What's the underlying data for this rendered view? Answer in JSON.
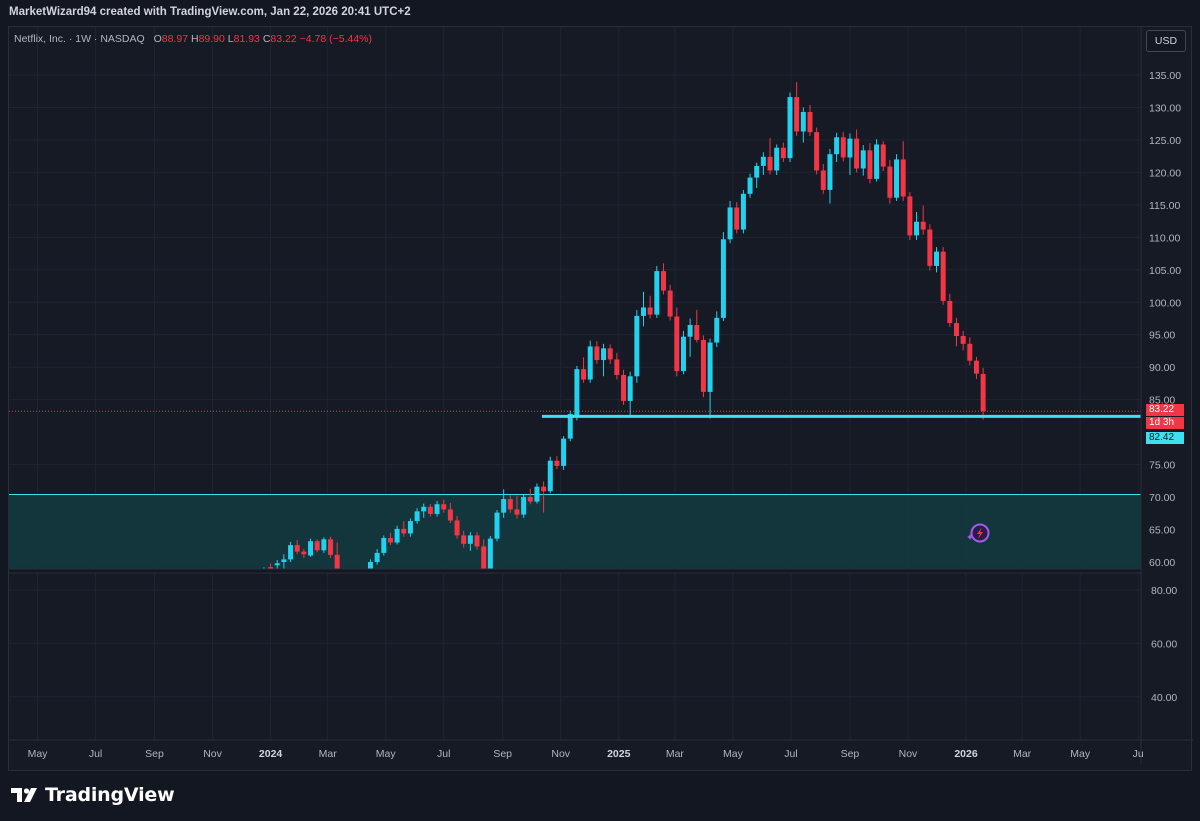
{
  "header": {
    "attribution": "MarketWizard94 created with TradingView.com, Jan 22, 2026 20:41 UTC+2"
  },
  "legend": {
    "symbol": "Netflix, Inc. · 1W · NASDAQ",
    "o_label": "O",
    "o_value": "88.97",
    "h_label": "H",
    "h_value": "89.90",
    "l_label": "L",
    "l_value": "81.93",
    "c_label": "C",
    "c_value": "83.22",
    "change": "−4.78 (−5.44%)"
  },
  "currency_button": "USD",
  "price_tags": {
    "last_price": "83.22",
    "countdown": "1d 3h",
    "line_price": "82.42"
  },
  "brand": {
    "name": "TradingView"
  },
  "colors": {
    "up": "#22d1ee",
    "down": "#f23645",
    "line": "#3ee0f0",
    "zone": "#133a40",
    "background": "#161a25"
  },
  "chart_data": {
    "type": "candlestick",
    "interval": "1W",
    "price_axis": {
      "ylim": [
        58.5,
        137.5
      ],
      "ticks": [
        "135.00",
        "130.00",
        "125.00",
        "120.00",
        "115.00",
        "110.00",
        "105.00",
        "100.00",
        "95.00",
        "90.00",
        "85.00",
        "75.00",
        "70.00",
        "65.00",
        "60.00"
      ]
    },
    "lower_axis": {
      "ticks": [
        "80.00",
        "60.00",
        "40.00"
      ]
    },
    "time_axis": {
      "ticks": [
        {
          "label": "May",
          "date": "2023-05-01",
          "bold": false
        },
        {
          "label": "Jul",
          "date": "2023-07-01",
          "bold": false
        },
        {
          "label": "Sep",
          "date": "2023-09-01",
          "bold": false
        },
        {
          "label": "Nov",
          "date": "2023-11-01",
          "bold": false
        },
        {
          "label": "2024",
          "date": "2024-01-01",
          "bold": true
        },
        {
          "label": "Mar",
          "date": "2024-03-01",
          "bold": false
        },
        {
          "label": "May",
          "date": "2024-05-01",
          "bold": false
        },
        {
          "label": "Jul",
          "date": "2024-07-01",
          "bold": false
        },
        {
          "label": "Sep",
          "date": "2024-09-01",
          "bold": false
        },
        {
          "label": "Nov",
          "date": "2024-11-01",
          "bold": false
        },
        {
          "label": "2025",
          "date": "2025-01-01",
          "bold": true
        },
        {
          "label": "Mar",
          "date": "2025-03-01",
          "bold": false
        },
        {
          "label": "May",
          "date": "2025-05-01",
          "bold": false
        },
        {
          "label": "Jul",
          "date": "2025-07-01",
          "bold": false
        },
        {
          "label": "Sep",
          "date": "2025-09-01",
          "bold": false
        },
        {
          "label": "Nov",
          "date": "2025-11-01",
          "bold": false
        },
        {
          "label": "2026",
          "date": "2026-01-01",
          "bold": true
        },
        {
          "label": "Mar",
          "date": "2026-03-01",
          "bold": false
        },
        {
          "label": "May",
          "date": "2026-05-01",
          "bold": false
        },
        {
          "label": "Ju",
          "date": "2026-07-01",
          "bold": false
        }
      ]
    },
    "support_line": {
      "price": 82.42,
      "from_date": "2024-10-28",
      "to_date": "2026-07-20"
    },
    "support_zone": {
      "top": 70.4,
      "bottom": 58.5,
      "from_date": "2023-04-01"
    },
    "last_price": 83.22,
    "candles": [
      {
        "d": "2023-12-18",
        "o": 58.5,
        "h": 58.9,
        "l": 58.5,
        "c": 58.7
      },
      {
        "d": "2023-12-25",
        "o": 58.5,
        "h": 59.2,
        "l": 58.5,
        "c": 59.0
      },
      {
        "d": "2024-01-01",
        "o": 59.2,
        "h": 59.8,
        "l": 58.5,
        "c": 58.8
      },
      {
        "d": "2024-01-08",
        "o": 59.5,
        "h": 60.3,
        "l": 58.5,
        "c": 59.8
      },
      {
        "d": "2024-01-15",
        "o": 60.0,
        "h": 61.2,
        "l": 58.5,
        "c": 60.4
      },
      {
        "d": "2024-01-22",
        "o": 60.4,
        "h": 63.1,
        "l": 60.0,
        "c": 62.6
      },
      {
        "d": "2024-01-29",
        "o": 62.6,
        "h": 63.4,
        "l": 61.2,
        "c": 61.6
      },
      {
        "d": "2024-02-05",
        "o": 61.6,
        "h": 62.0,
        "l": 60.6,
        "c": 61.2
      },
      {
        "d": "2024-02-12",
        "o": 61.0,
        "h": 63.6,
        "l": 60.8,
        "c": 63.2
      },
      {
        "d": "2024-02-19",
        "o": 63.2,
        "h": 63.5,
        "l": 61.5,
        "c": 61.8
      },
      {
        "d": "2024-02-26",
        "o": 61.8,
        "h": 63.8,
        "l": 61.4,
        "c": 63.5
      },
      {
        "d": "2024-03-04",
        "o": 63.5,
        "h": 63.9,
        "l": 60.6,
        "c": 61.1
      },
      {
        "d": "2024-03-11",
        "o": 61.1,
        "h": 63.0,
        "l": 58.5,
        "c": 59.0
      },
      {
        "d": "2024-03-18",
        "o": 58.6,
        "h": 58.9,
        "l": 58.5,
        "c": 58.7
      },
      {
        "d": "2024-03-25",
        "o": 58.6,
        "h": 58.8,
        "l": 58.5,
        "c": 58.6
      },
      {
        "d": "2024-04-01",
        "o": 58.6,
        "h": 58.8,
        "l": 58.5,
        "c": 58.7
      },
      {
        "d": "2024-04-08",
        "o": 58.6,
        "h": 58.9,
        "l": 58.5,
        "c": 58.6
      },
      {
        "d": "2024-04-15",
        "o": 58.5,
        "h": 60.4,
        "l": 58.5,
        "c": 60.0
      },
      {
        "d": "2024-04-22",
        "o": 60.0,
        "h": 62.0,
        "l": 59.6,
        "c": 61.4
      },
      {
        "d": "2024-04-29",
        "o": 61.4,
        "h": 64.1,
        "l": 61.0,
        "c": 63.7
      },
      {
        "d": "2024-05-06",
        "o": 63.7,
        "h": 64.5,
        "l": 62.6,
        "c": 63.0
      },
      {
        "d": "2024-05-13",
        "o": 63.0,
        "h": 65.6,
        "l": 62.7,
        "c": 65.1
      },
      {
        "d": "2024-05-20",
        "o": 65.1,
        "h": 66.3,
        "l": 63.9,
        "c": 64.4
      },
      {
        "d": "2024-05-27",
        "o": 64.4,
        "h": 66.7,
        "l": 63.9,
        "c": 66.3
      },
      {
        "d": "2024-06-03",
        "o": 66.3,
        "h": 68.3,
        "l": 65.9,
        "c": 67.8
      },
      {
        "d": "2024-06-10",
        "o": 67.8,
        "h": 69.0,
        "l": 66.8,
        "c": 68.5
      },
      {
        "d": "2024-06-17",
        "o": 68.5,
        "h": 68.9,
        "l": 67.0,
        "c": 67.4
      },
      {
        "d": "2024-06-24",
        "o": 67.4,
        "h": 69.4,
        "l": 67.0,
        "c": 68.9
      },
      {
        "d": "2024-07-01",
        "o": 68.9,
        "h": 69.6,
        "l": 67.6,
        "c": 68.1
      },
      {
        "d": "2024-07-08",
        "o": 68.1,
        "h": 69.1,
        "l": 66.0,
        "c": 66.4
      },
      {
        "d": "2024-07-15",
        "o": 66.4,
        "h": 67.1,
        "l": 63.6,
        "c": 64.1
      },
      {
        "d": "2024-07-22",
        "o": 64.1,
        "h": 64.8,
        "l": 62.2,
        "c": 62.8
      },
      {
        "d": "2024-07-29",
        "o": 62.8,
        "h": 64.6,
        "l": 61.7,
        "c": 64.1
      },
      {
        "d": "2024-08-05",
        "o": 64.1,
        "h": 64.6,
        "l": 61.9,
        "c": 62.4
      },
      {
        "d": "2024-08-12",
        "o": 62.4,
        "h": 63.5,
        "l": 58.5,
        "c": 59.0
      },
      {
        "d": "2024-08-19",
        "o": 59.0,
        "h": 64.0,
        "l": 58.7,
        "c": 63.6
      },
      {
        "d": "2024-08-26",
        "o": 63.6,
        "h": 68.0,
        "l": 63.2,
        "c": 67.6
      },
      {
        "d": "2024-09-02",
        "o": 67.6,
        "h": 71.2,
        "l": 66.8,
        "c": 69.7
      },
      {
        "d": "2024-09-09",
        "o": 69.7,
        "h": 70.3,
        "l": 67.6,
        "c": 68.1
      },
      {
        "d": "2024-09-16",
        "o": 68.1,
        "h": 70.2,
        "l": 66.7,
        "c": 67.3
      },
      {
        "d": "2024-09-23",
        "o": 67.3,
        "h": 70.4,
        "l": 66.8,
        "c": 70.0
      },
      {
        "d": "2024-09-30",
        "o": 70.0,
        "h": 71.3,
        "l": 68.9,
        "c": 69.3
      },
      {
        "d": "2024-10-07",
        "o": 69.3,
        "h": 72.1,
        "l": 69.0,
        "c": 71.6
      },
      {
        "d": "2024-10-14",
        "o": 71.6,
        "h": 72.4,
        "l": 67.6,
        "c": 70.9
      },
      {
        "d": "2024-10-21",
        "o": 70.9,
        "h": 76.2,
        "l": 70.6,
        "c": 75.6
      },
      {
        "d": "2024-10-28",
        "o": 75.6,
        "h": 76.3,
        "l": 74.3,
        "c": 74.8
      },
      {
        "d": "2024-11-04",
        "o": 74.8,
        "h": 79.4,
        "l": 74.2,
        "c": 79.0
      },
      {
        "d": "2024-11-11",
        "o": 79.0,
        "h": 83.3,
        "l": 78.6,
        "c": 82.8
      },
      {
        "d": "2024-11-18",
        "o": 82.4,
        "h": 90.2,
        "l": 81.8,
        "c": 89.7
      },
      {
        "d": "2024-11-25",
        "o": 89.7,
        "h": 91.5,
        "l": 87.6,
        "c": 88.1
      },
      {
        "d": "2024-12-02",
        "o": 88.1,
        "h": 94.1,
        "l": 87.6,
        "c": 93.2
      },
      {
        "d": "2024-12-09",
        "o": 93.2,
        "h": 94.0,
        "l": 90.5,
        "c": 91.1
      },
      {
        "d": "2024-12-16",
        "o": 91.1,
        "h": 93.6,
        "l": 88.6,
        "c": 92.9
      },
      {
        "d": "2024-12-23",
        "o": 92.9,
        "h": 93.5,
        "l": 90.5,
        "c": 91.2
      },
      {
        "d": "2024-12-30",
        "o": 91.2,
        "h": 92.2,
        "l": 88.1,
        "c": 88.8
      },
      {
        "d": "2025-01-06",
        "o": 88.8,
        "h": 89.6,
        "l": 84.2,
        "c": 84.8
      },
      {
        "d": "2025-01-13",
        "o": 84.8,
        "h": 89.3,
        "l": 82.6,
        "c": 88.6
      },
      {
        "d": "2025-01-20",
        "o": 88.6,
        "h": 98.8,
        "l": 87.6,
        "c": 97.9
      },
      {
        "d": "2025-01-27",
        "o": 97.9,
        "h": 101.6,
        "l": 96.3,
        "c": 99.2
      },
      {
        "d": "2025-02-03",
        "o": 99.2,
        "h": 101.0,
        "l": 97.5,
        "c": 98.1
      },
      {
        "d": "2025-02-10",
        "o": 98.1,
        "h": 105.6,
        "l": 97.6,
        "c": 104.8
      },
      {
        "d": "2025-02-17",
        "o": 104.8,
        "h": 106.0,
        "l": 101.2,
        "c": 101.8
      },
      {
        "d": "2025-02-24",
        "o": 101.8,
        "h": 102.7,
        "l": 97.2,
        "c": 97.8
      },
      {
        "d": "2025-03-03",
        "o": 97.8,
        "h": 99.2,
        "l": 88.6,
        "c": 89.4
      },
      {
        "d": "2025-03-10",
        "o": 89.4,
        "h": 95.6,
        "l": 88.9,
        "c": 94.7
      },
      {
        "d": "2025-03-17",
        "o": 94.7,
        "h": 97.5,
        "l": 91.6,
        "c": 96.5
      },
      {
        "d": "2025-03-24",
        "o": 96.5,
        "h": 98.8,
        "l": 93.8,
        "c": 94.2
      },
      {
        "d": "2025-03-31",
        "o": 94.2,
        "h": 94.9,
        "l": 85.4,
        "c": 86.2
      },
      {
        "d": "2025-04-07",
        "o": 86.2,
        "h": 94.4,
        "l": 82.1,
        "c": 93.8
      },
      {
        "d": "2025-04-14",
        "o": 93.8,
        "h": 98.6,
        "l": 93.1,
        "c": 97.6
      },
      {
        "d": "2025-04-21",
        "o": 97.6,
        "h": 110.8,
        "l": 97.1,
        "c": 109.7
      },
      {
        "d": "2025-04-28",
        "o": 109.7,
        "h": 115.6,
        "l": 109.1,
        "c": 114.6
      },
      {
        "d": "2025-05-05",
        "o": 114.6,
        "h": 115.4,
        "l": 110.6,
        "c": 111.2
      },
      {
        "d": "2025-05-12",
        "o": 111.2,
        "h": 117.3,
        "l": 110.6,
        "c": 116.7
      },
      {
        "d": "2025-05-19",
        "o": 116.7,
        "h": 119.8,
        "l": 116.1,
        "c": 119.2
      },
      {
        "d": "2025-05-26",
        "o": 119.2,
        "h": 121.5,
        "l": 117.6,
        "c": 121.0
      },
      {
        "d": "2025-06-02",
        "o": 121.0,
        "h": 123.1,
        "l": 119.6,
        "c": 122.4
      },
      {
        "d": "2025-06-09",
        "o": 122.4,
        "h": 125.3,
        "l": 119.7,
        "c": 120.3
      },
      {
        "d": "2025-06-16",
        "o": 120.3,
        "h": 124.3,
        "l": 119.6,
        "c": 123.8
      },
      {
        "d": "2025-06-23",
        "o": 123.8,
        "h": 124.6,
        "l": 121.6,
        "c": 122.2
      },
      {
        "d": "2025-06-30",
        "o": 122.2,
        "h": 132.3,
        "l": 121.6,
        "c": 131.6
      },
      {
        "d": "2025-07-07",
        "o": 131.6,
        "h": 133.9,
        "l": 125.6,
        "c": 126.3
      },
      {
        "d": "2025-07-14",
        "o": 126.3,
        "h": 130.0,
        "l": 124.6,
        "c": 129.3
      },
      {
        "d": "2025-07-21",
        "o": 129.3,
        "h": 130.4,
        "l": 125.6,
        "c": 126.2
      },
      {
        "d": "2025-07-28",
        "o": 126.2,
        "h": 126.9,
        "l": 119.7,
        "c": 120.3
      },
      {
        "d": "2025-08-04",
        "o": 120.3,
        "h": 121.3,
        "l": 116.7,
        "c": 117.3
      },
      {
        "d": "2025-08-11",
        "o": 117.3,
        "h": 123.6,
        "l": 115.2,
        "c": 122.8
      },
      {
        "d": "2025-08-18",
        "o": 122.8,
        "h": 126.1,
        "l": 121.6,
        "c": 125.4
      },
      {
        "d": "2025-08-25",
        "o": 125.4,
        "h": 126.2,
        "l": 121.7,
        "c": 122.3
      },
      {
        "d": "2025-09-01",
        "o": 122.3,
        "h": 126.0,
        "l": 119.6,
        "c": 125.2
      },
      {
        "d": "2025-09-08",
        "o": 125.2,
        "h": 126.6,
        "l": 120.0,
        "c": 120.6
      },
      {
        "d": "2025-09-15",
        "o": 120.6,
        "h": 124.2,
        "l": 119.5,
        "c": 123.4
      },
      {
        "d": "2025-09-22",
        "o": 123.4,
        "h": 124.5,
        "l": 118.3,
        "c": 119.0
      },
      {
        "d": "2025-09-29",
        "o": 119.0,
        "h": 125.1,
        "l": 118.6,
        "c": 124.3
      },
      {
        "d": "2025-10-06",
        "o": 124.3,
        "h": 124.8,
        "l": 120.2,
        "c": 120.9
      },
      {
        "d": "2025-10-13",
        "o": 120.9,
        "h": 121.9,
        "l": 115.2,
        "c": 116.1
      },
      {
        "d": "2025-10-20",
        "o": 116.1,
        "h": 122.8,
        "l": 115.6,
        "c": 122.0
      },
      {
        "d": "2025-10-27",
        "o": 122.0,
        "h": 124.8,
        "l": 115.6,
        "c": 116.3
      },
      {
        "d": "2025-11-03",
        "o": 116.3,
        "h": 117.0,
        "l": 109.6,
        "c": 110.3
      },
      {
        "d": "2025-11-10",
        "o": 110.3,
        "h": 113.9,
        "l": 109.6,
        "c": 112.4
      },
      {
        "d": "2025-11-17",
        "o": 112.4,
        "h": 114.9,
        "l": 110.4,
        "c": 111.2
      },
      {
        "d": "2025-11-24",
        "o": 111.2,
        "h": 112.0,
        "l": 104.9,
        "c": 105.6
      },
      {
        "d": "2025-12-01",
        "o": 105.6,
        "h": 108.5,
        "l": 104.6,
        "c": 107.8
      },
      {
        "d": "2025-12-08",
        "o": 107.8,
        "h": 108.5,
        "l": 99.6,
        "c": 100.2
      },
      {
        "d": "2025-12-15",
        "o": 100.2,
        "h": 101.3,
        "l": 96.2,
        "c": 96.8
      },
      {
        "d": "2025-12-22",
        "o": 96.8,
        "h": 97.6,
        "l": 93.2,
        "c": 94.8
      },
      {
        "d": "2025-12-29",
        "o": 94.8,
        "h": 95.6,
        "l": 92.6,
        "c": 93.6
      },
      {
        "d": "2026-01-05",
        "o": 93.6,
        "h": 94.6,
        "l": 90.3,
        "c": 91.0
      },
      {
        "d": "2026-01-12",
        "o": 91.0,
        "h": 91.6,
        "l": 88.2,
        "c": 89.0
      },
      {
        "d": "2026-01-19",
        "o": 88.97,
        "h": 89.9,
        "l": 81.93,
        "c": 83.22
      }
    ]
  }
}
